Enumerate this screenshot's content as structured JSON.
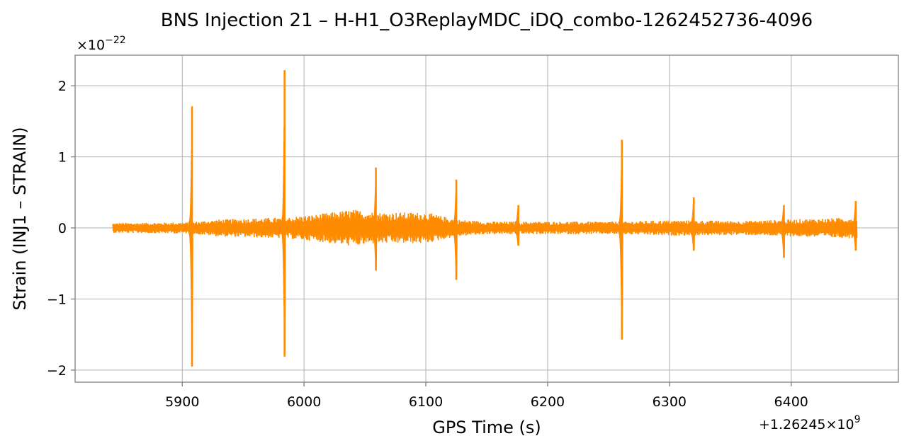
{
  "chart_data": {
    "type": "line",
    "title": "BNS Injection 21 – H-H1_O3ReplayMDC_iDQ_combo-1262452736-4096",
    "xlabel": "GPS Time (s)",
    "ylabel": "Strain (INJ1 – STRAIN)",
    "x_offset_label": "+1.26245×10",
    "x_offset_exp": "9",
    "y_multiplier_label": "×10",
    "y_multiplier_exp": "−22",
    "xlim": [
      5812,
      6488
    ],
    "ylim": [
      -2.17,
      2.43
    ],
    "x_ticks": [
      5900,
      6000,
      6100,
      6200,
      6300,
      6400
    ],
    "x_tick_labels": [
      "5900",
      "6000",
      "6100",
      "6200",
      "6300",
      "6400"
    ],
    "y_ticks": [
      -2,
      -1,
      0,
      1,
      2
    ],
    "y_tick_labels": [
      "−2",
      "−1",
      "0",
      "1",
      "2"
    ],
    "grid": true,
    "series_color": "#ff8c00",
    "series": [
      {
        "x_range": [
          5843,
          6454
        ],
        "noise_envelope": [
          {
            "x": 5843,
            "amp": 0.07
          },
          {
            "x": 5905,
            "amp": 0.08
          },
          {
            "x": 5930,
            "amp": 0.12
          },
          {
            "x": 5985,
            "amp": 0.15
          },
          {
            "x": 6010,
            "amp": 0.19
          },
          {
            "x": 6040,
            "amp": 0.26
          },
          {
            "x": 6060,
            "amp": 0.22
          },
          {
            "x": 6100,
            "amp": 0.22
          },
          {
            "x": 6125,
            "amp": 0.12
          },
          {
            "x": 6150,
            "amp": 0.09
          },
          {
            "x": 6200,
            "amp": 0.09
          },
          {
            "x": 6260,
            "amp": 0.09
          },
          {
            "x": 6300,
            "amp": 0.11
          },
          {
            "x": 6360,
            "amp": 0.1
          },
          {
            "x": 6400,
            "amp": 0.12
          },
          {
            "x": 6454,
            "amp": 0.15
          }
        ],
        "spikes": [
          {
            "x": 5908,
            "max": 1.71,
            "min": -1.95
          },
          {
            "x": 5984,
            "max": 2.22,
            "min": -1.81
          },
          {
            "x": 6059,
            "max": 0.85,
            "min": -0.6
          },
          {
            "x": 6125,
            "max": 0.68,
            "min": -0.73
          },
          {
            "x": 6176,
            "max": 0.32,
            "min": -0.25
          },
          {
            "x": 6261,
            "max": 1.24,
            "min": -1.57
          },
          {
            "x": 6320,
            "max": 0.43,
            "min": -0.32
          },
          {
            "x": 6394,
            "max": 0.32,
            "min": -0.42
          },
          {
            "x": 6453,
            "max": 0.38,
            "min": -0.32
          }
        ]
      }
    ]
  }
}
